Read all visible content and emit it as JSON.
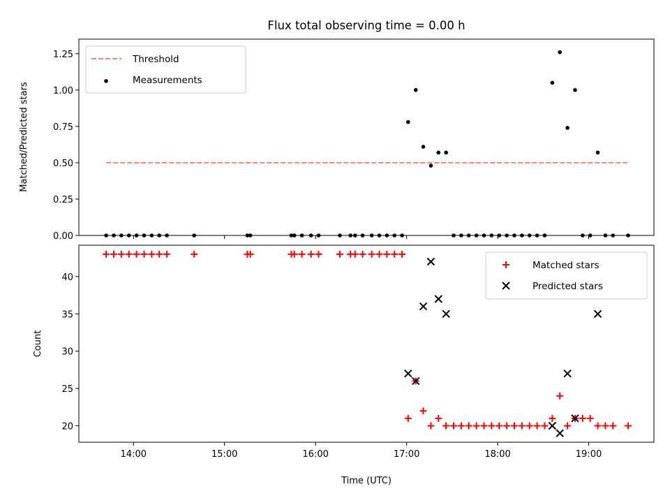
{
  "title": "Flux total observing time = 0.00 h",
  "chart_data": [
    {
      "type": "scatter",
      "ylabel": "Matched/Predicted stars",
      "xlim": [
        "13:24",
        "19:43"
      ],
      "ylim": [
        0,
        1.35
      ],
      "yticks": [
        "0.00",
        "0.25",
        "0.50",
        "0.75",
        "1.00",
        "1.25"
      ],
      "legend_position": "upper-left",
      "threshold": {
        "name": "Threshold",
        "value": 0.5,
        "x_start": "13:42",
        "x_end": "19:26",
        "color": "#ff7f7f"
      },
      "series": [
        {
          "name": "Measurements",
          "color": "#000000",
          "marker": "dot",
          "points": [
            [
              "13:42",
              0
            ],
            [
              "13:47",
              0
            ],
            [
              "13:52",
              0
            ],
            [
              "13:57",
              0
            ],
            [
              "14:02",
              0
            ],
            [
              "14:07",
              0
            ],
            [
              "14:12",
              0
            ],
            [
              "14:17",
              0
            ],
            [
              "14:22",
              0
            ],
            [
              "14:40",
              0
            ],
            [
              "15:15",
              0
            ],
            [
              "15:17",
              0
            ],
            [
              "15:44",
              0
            ],
            [
              "15:46",
              0
            ],
            [
              "15:51",
              0
            ],
            [
              "15:57",
              0
            ],
            [
              "16:02",
              0
            ],
            [
              "16:16",
              0
            ],
            [
              "16:23",
              0
            ],
            [
              "16:26",
              0
            ],
            [
              "16:31",
              0
            ],
            [
              "16:37",
              0
            ],
            [
              "16:42",
              0
            ],
            [
              "16:47",
              0
            ],
            [
              "16:52",
              0
            ],
            [
              "16:57",
              0
            ],
            [
              "17:01",
              0.78
            ],
            [
              "17:06",
              1.0
            ],
            [
              "17:11",
              0.61
            ],
            [
              "17:16",
              0.48
            ],
            [
              "17:21",
              0.57
            ],
            [
              "17:26",
              0.57
            ],
            [
              "17:31",
              0
            ],
            [
              "17:36",
              0
            ],
            [
              "17:41",
              0
            ],
            [
              "17:46",
              0
            ],
            [
              "17:51",
              0
            ],
            [
              "17:56",
              0
            ],
            [
              "18:01",
              0
            ],
            [
              "18:06",
              0
            ],
            [
              "18:11",
              0
            ],
            [
              "18:16",
              0
            ],
            [
              "18:21",
              0
            ],
            [
              "18:26",
              0
            ],
            [
              "18:31",
              0
            ],
            [
              "18:36",
              1.05
            ],
            [
              "18:41",
              1.26
            ],
            [
              "18:46",
              0.74
            ],
            [
              "18:51",
              1.0
            ],
            [
              "18:56",
              0
            ],
            [
              "19:01",
              0
            ],
            [
              "19:06",
              0.57
            ],
            [
              "19:11",
              0
            ],
            [
              "19:16",
              0
            ],
            [
              "19:26",
              0
            ]
          ]
        }
      ]
    },
    {
      "type": "scatter",
      "ylabel": "Count",
      "xlabel": "Time (UTC)",
      "xlim": [
        "13:24",
        "19:43"
      ],
      "ylim": [
        17.8,
        44.2
      ],
      "yticks": [
        "20",
        "25",
        "30",
        "35",
        "40"
      ],
      "xticks": [
        "14:00",
        "15:00",
        "16:00",
        "17:00",
        "18:00",
        "19:00"
      ],
      "legend_position": "upper-right",
      "series": [
        {
          "name": "Matched stars",
          "color": "#ff0000",
          "marker": "plus",
          "points": [
            [
              "13:42",
              43
            ],
            [
              "13:47",
              43
            ],
            [
              "13:52",
              43
            ],
            [
              "13:57",
              43
            ],
            [
              "14:02",
              43
            ],
            [
              "14:07",
              43
            ],
            [
              "14:12",
              43
            ],
            [
              "14:17",
              43
            ],
            [
              "14:22",
              43
            ],
            [
              "14:40",
              43
            ],
            [
              "15:15",
              43
            ],
            [
              "15:17",
              43
            ],
            [
              "15:44",
              43
            ],
            [
              "15:46",
              43
            ],
            [
              "15:51",
              43
            ],
            [
              "15:57",
              43
            ],
            [
              "16:02",
              43
            ],
            [
              "16:16",
              43
            ],
            [
              "16:23",
              43
            ],
            [
              "16:26",
              43
            ],
            [
              "16:31",
              43
            ],
            [
              "16:37",
              43
            ],
            [
              "16:42",
              43
            ],
            [
              "16:47",
              43
            ],
            [
              "16:52",
              43
            ],
            [
              "16:57",
              43
            ],
            [
              "17:01",
              21
            ],
            [
              "17:06",
              26
            ],
            [
              "17:11",
              22
            ],
            [
              "17:16",
              20
            ],
            [
              "17:21",
              21
            ],
            [
              "17:26",
              20
            ],
            [
              "17:31",
              20
            ],
            [
              "17:36",
              20
            ],
            [
              "17:41",
              20
            ],
            [
              "17:46",
              20
            ],
            [
              "17:51",
              20
            ],
            [
              "17:56",
              20
            ],
            [
              "18:01",
              20
            ],
            [
              "18:06",
              20
            ],
            [
              "18:11",
              20
            ],
            [
              "18:16",
              20
            ],
            [
              "18:21",
              20
            ],
            [
              "18:26",
              20
            ],
            [
              "18:31",
              20
            ],
            [
              "18:36",
              21
            ],
            [
              "18:41",
              24
            ],
            [
              "18:46",
              20
            ],
            [
              "18:51",
              21
            ],
            [
              "18:56",
              21
            ],
            [
              "19:01",
              21
            ],
            [
              "19:06",
              20
            ],
            [
              "19:11",
              20
            ],
            [
              "19:16",
              20
            ],
            [
              "19:26",
              20
            ]
          ]
        },
        {
          "name": "Predicted stars",
          "color": "#000000",
          "marker": "x",
          "points": [
            [
              "17:01",
              27
            ],
            [
              "17:06",
              26
            ],
            [
              "17:11",
              36
            ],
            [
              "17:16",
              42
            ],
            [
              "17:21",
              37
            ],
            [
              "17:26",
              35
            ],
            [
              "18:36",
              20
            ],
            [
              "18:41",
              19
            ],
            [
              "18:46",
              27
            ],
            [
              "18:51",
              21
            ],
            [
              "19:06",
              35
            ]
          ]
        }
      ]
    }
  ]
}
